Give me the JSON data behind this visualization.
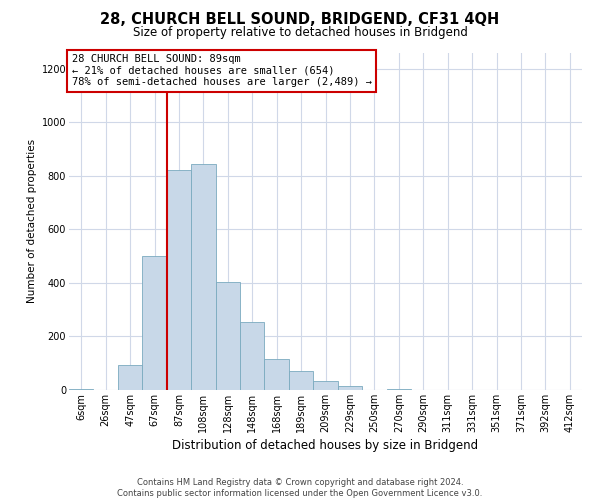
{
  "title": "28, CHURCH BELL SOUND, BRIDGEND, CF31 4QH",
  "subtitle": "Size of property relative to detached houses in Bridgend",
  "xlabel": "Distribution of detached houses by size in Bridgend",
  "ylabel": "Number of detached properties",
  "bar_labels": [
    "6sqm",
    "26sqm",
    "47sqm",
    "67sqm",
    "87sqm",
    "108sqm",
    "128sqm",
    "148sqm",
    "168sqm",
    "189sqm",
    "209sqm",
    "229sqm",
    "250sqm",
    "270sqm",
    "290sqm",
    "311sqm",
    "331sqm",
    "351sqm",
    "371sqm",
    "392sqm",
    "412sqm"
  ],
  "bar_values": [
    5,
    0,
    95,
    500,
    820,
    845,
    405,
    255,
    115,
    70,
    35,
    15,
    0,
    5,
    0,
    0,
    0,
    0,
    0,
    0,
    0
  ],
  "bar_color": "#c8d8e8",
  "bar_edge_color": "#7aaabf",
  "ylim": [
    0,
    1260
  ],
  "yticks": [
    0,
    200,
    400,
    600,
    800,
    1000,
    1200
  ],
  "property_line_index": 4,
  "property_line_color": "#cc0000",
  "annotation_line1": "28 CHURCH BELL SOUND: 89sqm",
  "annotation_line2": "← 21% of detached houses are smaller (654)",
  "annotation_line3": "78% of semi-detached houses are larger (2,489) →",
  "annotation_box_color": "#ffffff",
  "annotation_box_edge": "#cc0000",
  "footer_text": "Contains HM Land Registry data © Crown copyright and database right 2024.\nContains public sector information licensed under the Open Government Licence v3.0.",
  "background_color": "#ffffff",
  "grid_color": "#d0d8e8",
  "title_fontsize": 10.5,
  "subtitle_fontsize": 8.5,
  "xlabel_fontsize": 8.5,
  "ylabel_fontsize": 7.5,
  "tick_fontsize": 7,
  "footer_fontsize": 6,
  "annot_fontsize": 7.5
}
